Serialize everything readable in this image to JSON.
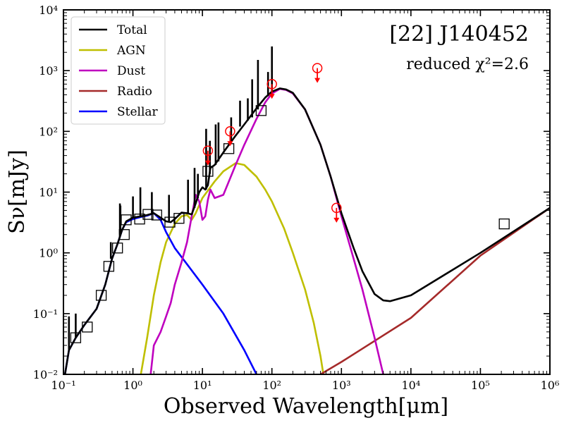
{
  "chart_data": {
    "type": "line",
    "title": "[22] J140452",
    "subtitle": "reduced χ²=2.6",
    "xlabel": "Observed Wavelength[μm]",
    "ylabel": "Sν[mJy]",
    "xscale": "log",
    "yscale": "log",
    "xlim": [
      0.1,
      1000000
    ],
    "ylim": [
      0.01,
      10000
    ],
    "x_ticks": [
      0.1,
      1,
      10,
      100,
      1000,
      10000,
      100000,
      1000000
    ],
    "x_tick_labels": [
      "10⁻¹",
      "10⁰",
      "10¹",
      "10²",
      "10³",
      "10⁴",
      "10⁵",
      "10⁶"
    ],
    "y_ticks": [
      0.01,
      0.1,
      1,
      10,
      100,
      1000,
      10000
    ],
    "y_tick_labels": [
      "10⁻²",
      "10⁻¹",
      "10⁰",
      "10¹",
      "10²",
      "10³",
      "10⁴"
    ],
    "legend_position": "top-left",
    "legend": [
      {
        "label": "Total",
        "color": "#000000"
      },
      {
        "label": "AGN",
        "color": "#bfbf00"
      },
      {
        "label": "Dust",
        "color": "#bf00bf"
      },
      {
        "label": "Radio",
        "color": "#a52a2a"
      },
      {
        "label": "Stellar",
        "color": "#0000ff"
      }
    ],
    "series": [
      {
        "name": "Total",
        "color": "#000000",
        "points": [
          [
            0.1,
            0.007
          ],
          [
            0.12,
            0.025
          ],
          [
            0.15,
            0.04
          ],
          [
            0.2,
            0.065
          ],
          [
            0.3,
            0.12
          ],
          [
            0.4,
            0.3
          ],
          [
            0.5,
            0.8
          ],
          [
            0.6,
            1.4
          ],
          [
            0.7,
            2.4
          ],
          [
            0.8,
            3.3
          ],
          [
            1.0,
            3.8
          ],
          [
            1.3,
            4.0
          ],
          [
            1.6,
            4.2
          ],
          [
            2.0,
            4.5
          ],
          [
            2.5,
            3.8
          ],
          [
            3.0,
            3.3
          ],
          [
            3.5,
            3.2
          ],
          [
            4.0,
            3.6
          ],
          [
            5.0,
            4.6
          ],
          [
            6.0,
            4.5
          ],
          [
            7.0,
            4.3
          ],
          [
            8.0,
            6.5
          ],
          [
            9.0,
            10.0
          ],
          [
            10.0,
            12.0
          ],
          [
            11.0,
            11.0
          ],
          [
            12.0,
            13.0
          ],
          [
            13.0,
            25.0
          ],
          [
            15.0,
            28.0
          ],
          [
            20.0,
            45.0
          ],
          [
            30.0,
            85.0
          ],
          [
            40.0,
            130.0
          ],
          [
            60.0,
            240.0
          ],
          [
            80.0,
            360.0
          ],
          [
            100.0,
            450.0
          ],
          [
            130.0,
            510.0
          ],
          [
            160.0,
            490.0
          ],
          [
            200.0,
            430.0
          ],
          [
            300.0,
            230.0
          ],
          [
            500.0,
            60.0
          ],
          [
            700.0,
            18.0
          ],
          [
            1000.0,
            4.5
          ],
          [
            1500.0,
            1.2
          ],
          [
            2000.0,
            0.5
          ],
          [
            3000.0,
            0.21
          ],
          [
            4000.0,
            0.165
          ],
          [
            5000.0,
            0.16
          ],
          [
            10000.0,
            0.2
          ],
          [
            100000.0,
            1.0
          ],
          [
            1000000.0,
            5.5
          ]
        ]
      },
      {
        "name": "AGN",
        "color": "#bfbf00",
        "points": [
          [
            1.3,
            0.01
          ],
          [
            1.6,
            0.04
          ],
          [
            2.0,
            0.2
          ],
          [
            2.5,
            0.7
          ],
          [
            3.0,
            1.5
          ],
          [
            4.0,
            3.0
          ],
          [
            5.0,
            4.0
          ],
          [
            6.0,
            4.2
          ],
          [
            7.0,
            3.5
          ],
          [
            8.0,
            4.5
          ],
          [
            10.0,
            8.0
          ],
          [
            15.0,
            15.0
          ],
          [
            20.0,
            22.0
          ],
          [
            30.0,
            30.0
          ],
          [
            40.0,
            28.0
          ],
          [
            60.0,
            18.0
          ],
          [
            80.0,
            11.0
          ],
          [
            100.0,
            7.0
          ],
          [
            150.0,
            2.5
          ],
          [
            200.0,
            1.0
          ],
          [
            300.0,
            0.25
          ],
          [
            400.0,
            0.07
          ],
          [
            500.0,
            0.02
          ],
          [
            550.0,
            0.01
          ]
        ]
      },
      {
        "name": "Dust",
        "color": "#bf00bf",
        "points": [
          [
            1.8,
            0.01
          ],
          [
            2.0,
            0.03
          ],
          [
            2.5,
            0.05
          ],
          [
            3.0,
            0.09
          ],
          [
            3.5,
            0.15
          ],
          [
            4.0,
            0.3
          ],
          [
            5.0,
            0.7
          ],
          [
            6.0,
            1.5
          ],
          [
            7.0,
            4.0
          ],
          [
            8.0,
            9.0
          ],
          [
            9.0,
            7.0
          ],
          [
            10.0,
            3.5
          ],
          [
            11.0,
            4.0
          ],
          [
            12.0,
            7.5
          ],
          [
            13.0,
            11.0
          ],
          [
            15.0,
            8.0
          ],
          [
            20.0,
            9.0
          ],
          [
            30.0,
            28.0
          ],
          [
            40.0,
            60.0
          ],
          [
            60.0,
            160.0
          ],
          [
            80.0,
            300.0
          ],
          [
            100.0,
            420.0
          ],
          [
            130.0,
            500.0
          ],
          [
            160.0,
            480.0
          ],
          [
            200.0,
            420.0
          ],
          [
            300.0,
            230.0
          ],
          [
            500.0,
            60.0
          ],
          [
            700.0,
            18.0
          ],
          [
            1000.0,
            4.0
          ],
          [
            1500.0,
            0.8
          ],
          [
            2000.0,
            0.25
          ],
          [
            3000.0,
            0.04
          ],
          [
            4000.0,
            0.01
          ]
        ]
      },
      {
        "name": "Radio",
        "color": "#a52a2a",
        "points": [
          [
            500.0,
            0.01
          ],
          [
            1000.0,
            0.016
          ],
          [
            10000.0,
            0.085
          ],
          [
            100000.0,
            0.9
          ],
          [
            1000000.0,
            5.5
          ]
        ]
      },
      {
        "name": "Stellar",
        "color": "#0000ff",
        "points": [
          [
            0.1,
            0.007
          ],
          [
            0.12,
            0.025
          ],
          [
            0.15,
            0.04
          ],
          [
            0.2,
            0.065
          ],
          [
            0.3,
            0.12
          ],
          [
            0.4,
            0.3
          ],
          [
            0.5,
            0.8
          ],
          [
            0.6,
            1.4
          ],
          [
            0.7,
            2.4
          ],
          [
            0.8,
            3.2
          ],
          [
            1.0,
            3.6
          ],
          [
            1.3,
            3.9
          ],
          [
            1.6,
            4.1
          ],
          [
            2.0,
            4.5
          ],
          [
            2.5,
            3.5
          ],
          [
            3.0,
            2.2
          ],
          [
            4.0,
            1.2
          ],
          [
            6.0,
            0.65
          ],
          [
            10.0,
            0.3
          ],
          [
            20.0,
            0.1
          ],
          [
            40.0,
            0.025
          ],
          [
            60.0,
            0.01
          ]
        ]
      }
    ],
    "photometry_boxes": [
      {
        "x": 0.15,
        "y": 0.04
      },
      {
        "x": 0.22,
        "y": 0.06
      },
      {
        "x": 0.35,
        "y": 0.2
      },
      {
        "x": 0.45,
        "y": 0.6
      },
      {
        "x": 0.6,
        "y": 1.2
      },
      {
        "x": 0.75,
        "y": 2.0
      },
      {
        "x": 0.8,
        "y": 3.5
      },
      {
        "x": 1.25,
        "y": 3.6
      },
      {
        "x": 1.65,
        "y": 4.3
      },
      {
        "x": 2.2,
        "y": 4.2
      },
      {
        "x": 3.4,
        "y": 3.2
      },
      {
        "x": 4.6,
        "y": 3.7
      },
      {
        "x": 12.0,
        "y": 22.0
      },
      {
        "x": 24.0,
        "y": 52.0
      },
      {
        "x": 70.0,
        "y": 220.0
      },
      {
        "x": 220000.0,
        "y": 3.0
      }
    ],
    "upper_limits": [
      {
        "x": 12.0,
        "y": 48.0
      },
      {
        "x": 25.0,
        "y": 100.0
      },
      {
        "x": 100.0,
        "y": 600.0
      },
      {
        "x": 450.0,
        "y": 1100.0
      },
      {
        "x": 850.0,
        "y": 5.5
      }
    ],
    "emission_spikes": [
      {
        "x": 0.15,
        "y0": 0.04,
        "y1": 0.1
      },
      {
        "x": 0.12,
        "y0": 0.025,
        "y1": 0.09
      },
      {
        "x": 0.48,
        "y0": 0.8,
        "y1": 1.5
      },
      {
        "x": 0.65,
        "y0": 2.0,
        "y1": 6.5
      },
      {
        "x": 0.66,
        "y0": 2.2,
        "y1": 6.0
      },
      {
        "x": 1.0,
        "y0": 3.8,
        "y1": 8.5
      },
      {
        "x": 1.28,
        "y0": 4.0,
        "y1": 12.0
      },
      {
        "x": 1.87,
        "y0": 4.3,
        "y1": 10.0
      },
      {
        "x": 3.3,
        "y0": 3.3,
        "y1": 9.0
      },
      {
        "x": 6.2,
        "y0": 4.5,
        "y1": 16.0
      },
      {
        "x": 7.7,
        "y0": 5.5,
        "y1": 25.0
      },
      {
        "x": 8.6,
        "y0": 8.0,
        "y1": 20.0
      },
      {
        "x": 11.3,
        "y0": 11.0,
        "y1": 110.0
      },
      {
        "x": 12.8,
        "y0": 20.0,
        "y1": 70.0
      },
      {
        "x": 15.5,
        "y0": 28.0,
        "y1": 130.0
      },
      {
        "x": 17.0,
        "y0": 32.0,
        "y1": 140.0
      },
      {
        "x": 25.9,
        "y0": 70.0,
        "y1": 170.0
      },
      {
        "x": 34.8,
        "y0": 120.0,
        "y1": 320.0
      },
      {
        "x": 45.0,
        "y0": 150.0,
        "y1": 350.0
      },
      {
        "x": 52.0,
        "y0": 170.0,
        "y1": 720.0
      },
      {
        "x": 63.0,
        "y0": 230.0,
        "y1": 1500.0
      },
      {
        "x": 88.0,
        "y0": 380.0,
        "y1": 950.0
      },
      {
        "x": 100.0,
        "y0": 450.0,
        "y1": 2500.0
      }
    ]
  }
}
